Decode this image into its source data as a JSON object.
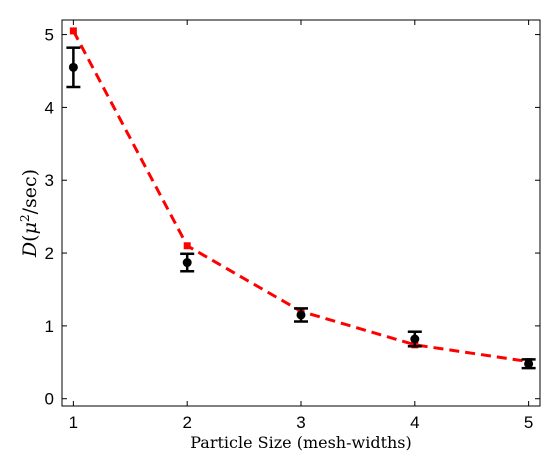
{
  "chart_data": {
    "type": "scatter",
    "xlabel": "Particle Size (mesh-widths)",
    "ylabel_parts": {
      "symbol": "D",
      "open_paren": "(",
      "mu": "μ",
      "exponent": "2",
      "unit": "/sec",
      "close_paren": ")"
    },
    "xlim": [
      0.9,
      5.1
    ],
    "ylim": [
      -0.1,
      5.2
    ],
    "xticks": [
      1,
      2,
      3,
      4,
      5
    ],
    "yticks": [
      0,
      1,
      2,
      3,
      4,
      5
    ],
    "grid": false,
    "series": [
      {
        "kind": "errorbar",
        "color": "#000000",
        "x": [
          1,
          2,
          3,
          4,
          5
        ],
        "y": [
          4.55,
          1.87,
          1.15,
          0.82,
          0.48
        ],
        "yerr": [
          0.27,
          0.12,
          0.09,
          0.1,
          0.06
        ]
      },
      {
        "kind": "dashed-line",
        "color": "#ff0000",
        "x": [
          1,
          2,
          3,
          4,
          5
        ],
        "y": [
          5.05,
          2.1,
          1.2,
          0.74,
          0.51
        ]
      }
    ]
  }
}
